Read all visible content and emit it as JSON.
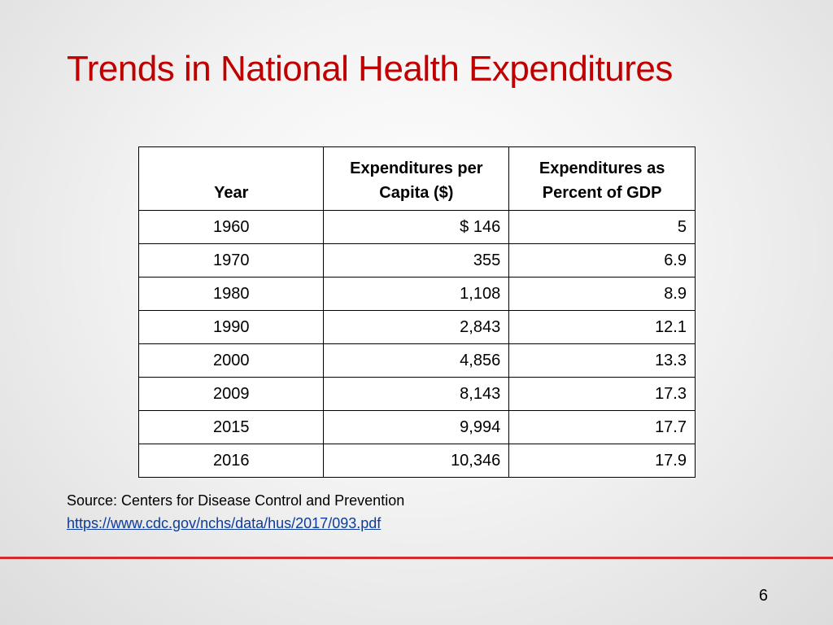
{
  "title": "Trends in National Health Expenditures",
  "table": {
    "headers": {
      "year": "Year",
      "per_capita_line1": "Expenditures per",
      "per_capita_line2": "Capita ($)",
      "gdp_line1": "Expenditures as",
      "gdp_line2": "Percent of GDP"
    },
    "rows": [
      {
        "year": "1960",
        "per_capita": "$ 146",
        "gdp_percent": "5"
      },
      {
        "year": "1970",
        "per_capita": "355",
        "gdp_percent": "6.9"
      },
      {
        "year": "1980",
        "per_capita": "1,108",
        "gdp_percent": "8.9"
      },
      {
        "year": "1990",
        "per_capita": "2,843",
        "gdp_percent": "12.1"
      },
      {
        "year": "2000",
        "per_capita": "4,856",
        "gdp_percent": "13.3"
      },
      {
        "year": "2009",
        "per_capita": "8,143",
        "gdp_percent": "17.3"
      },
      {
        "year": "2015",
        "per_capita": "9,994",
        "gdp_percent": "17.7"
      },
      {
        "year": "2016",
        "per_capita": "10,346",
        "gdp_percent": "17.9"
      }
    ]
  },
  "source": {
    "text": "Source: Centers for Disease Control and Prevention",
    "link": "https://www.cdc.gov/nchs/data/hus/2017/093.pdf"
  },
  "page_number": "6",
  "colors": {
    "title": "#c00000",
    "rule": "#d42a2a",
    "link": "#0b3c9e"
  }
}
